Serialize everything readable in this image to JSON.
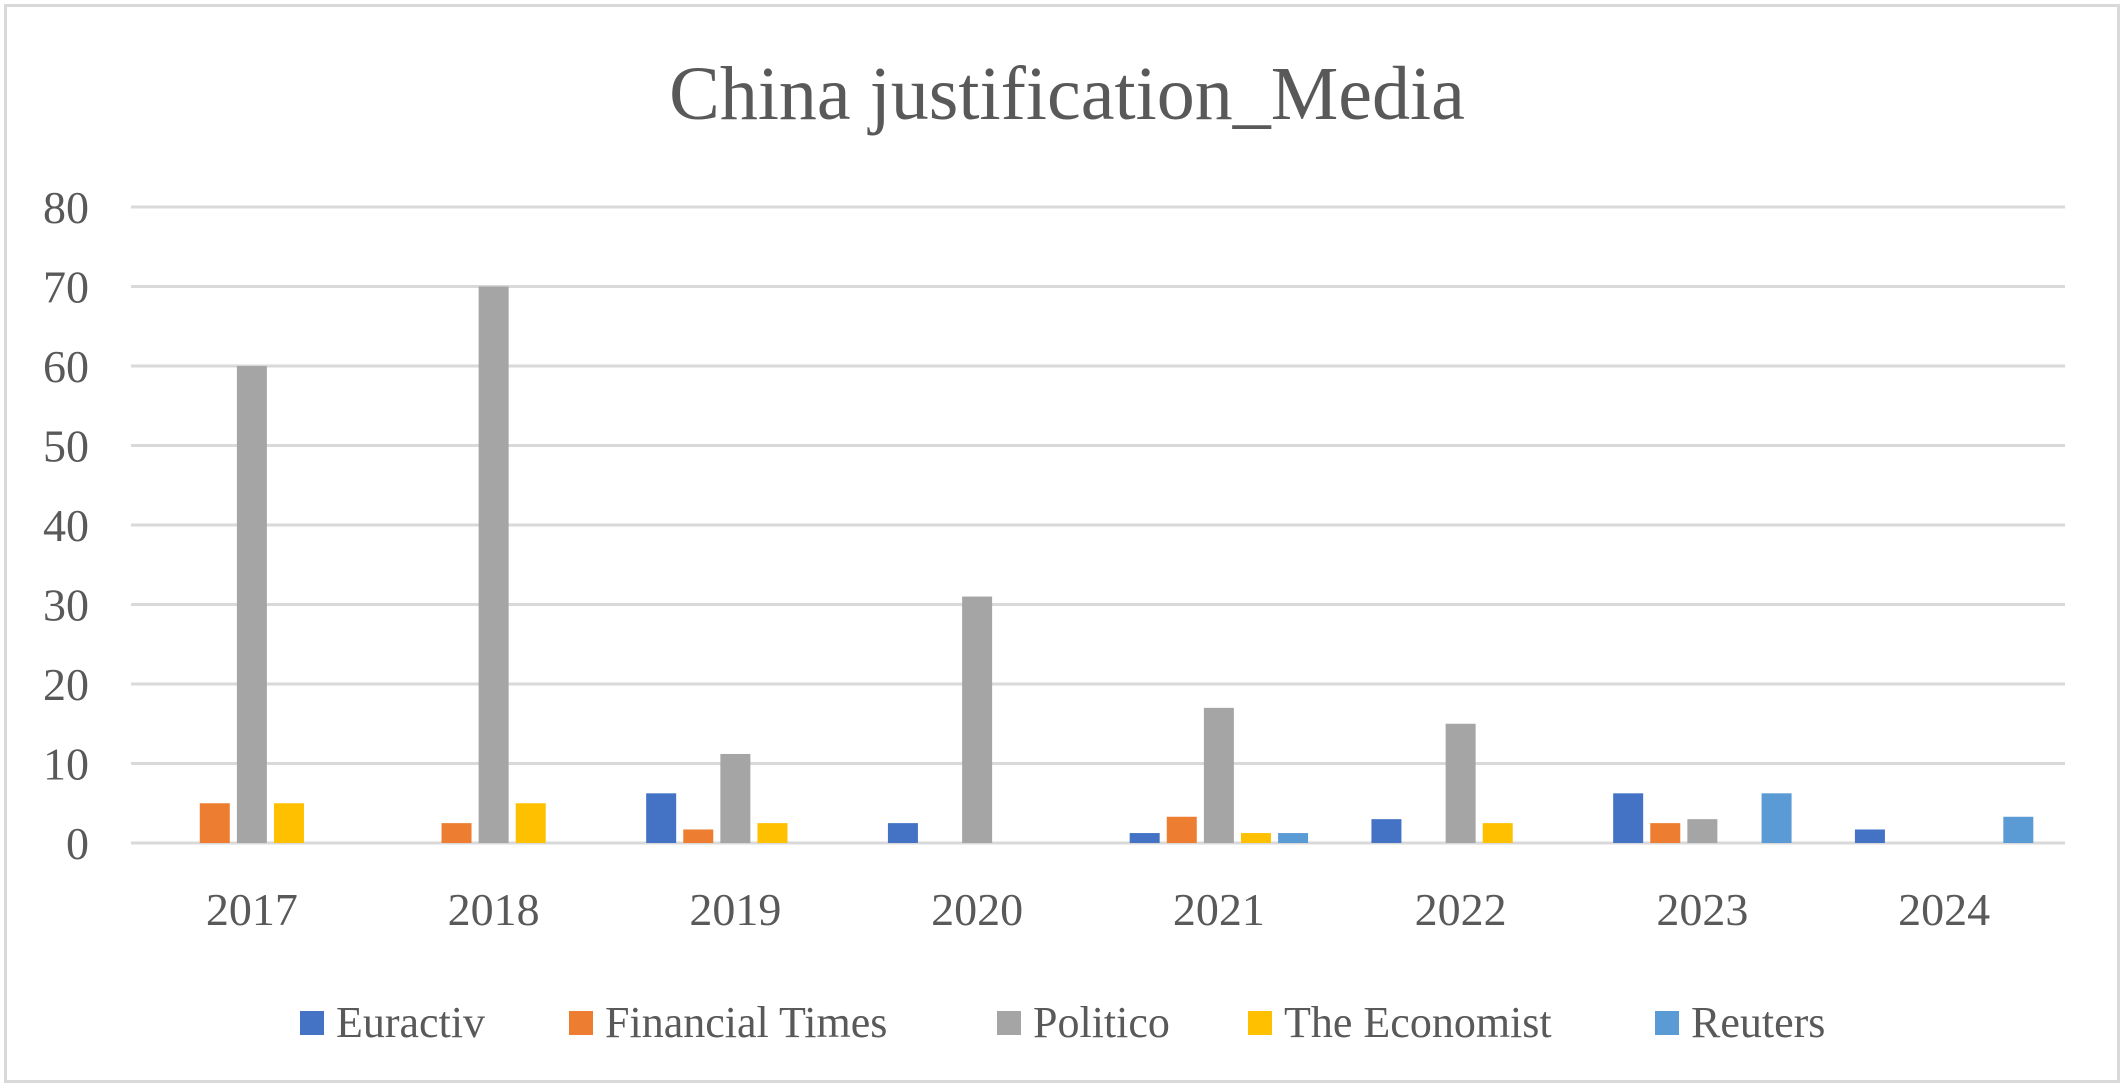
{
  "chart_data": {
    "type": "bar",
    "title": "China justification_Media",
    "xlabel": "",
    "ylabel": "",
    "categories": [
      "2017",
      "2018",
      "2019",
      "2020",
      "2021",
      "2022",
      "2023",
      "2024"
    ],
    "ylim": [
      0,
      80
    ],
    "yticks": [
      "0",
      "10",
      "20",
      "30",
      "40",
      "50",
      "60",
      "70",
      "80"
    ],
    "grid": true,
    "legend_position": "bottom",
    "series": [
      {
        "name": "Euractiv",
        "color": "#4472c4",
        "values": [
          0,
          0,
          6.25,
          2.5,
          1.25,
          3,
          6.25,
          1.7
        ]
      },
      {
        "name": "Financial Times",
        "color": "#ed7d31",
        "values": [
          5,
          2.5,
          1.7,
          0,
          3.3,
          0,
          2.5,
          0
        ]
      },
      {
        "name": "Politico",
        "color": "#a5a5a5",
        "values": [
          60,
          70,
          11.2,
          31,
          17,
          15,
          3,
          0
        ]
      },
      {
        "name": "The Economist",
        "color": "#ffc000",
        "values": [
          5,
          5,
          2.5,
          0,
          1.25,
          2.5,
          0,
          0
        ]
      },
      {
        "name": "Reuters",
        "color": "#5b9bd5",
        "values": [
          0,
          0,
          0,
          0,
          1.25,
          0,
          6.25,
          3.3
        ]
      }
    ]
  }
}
